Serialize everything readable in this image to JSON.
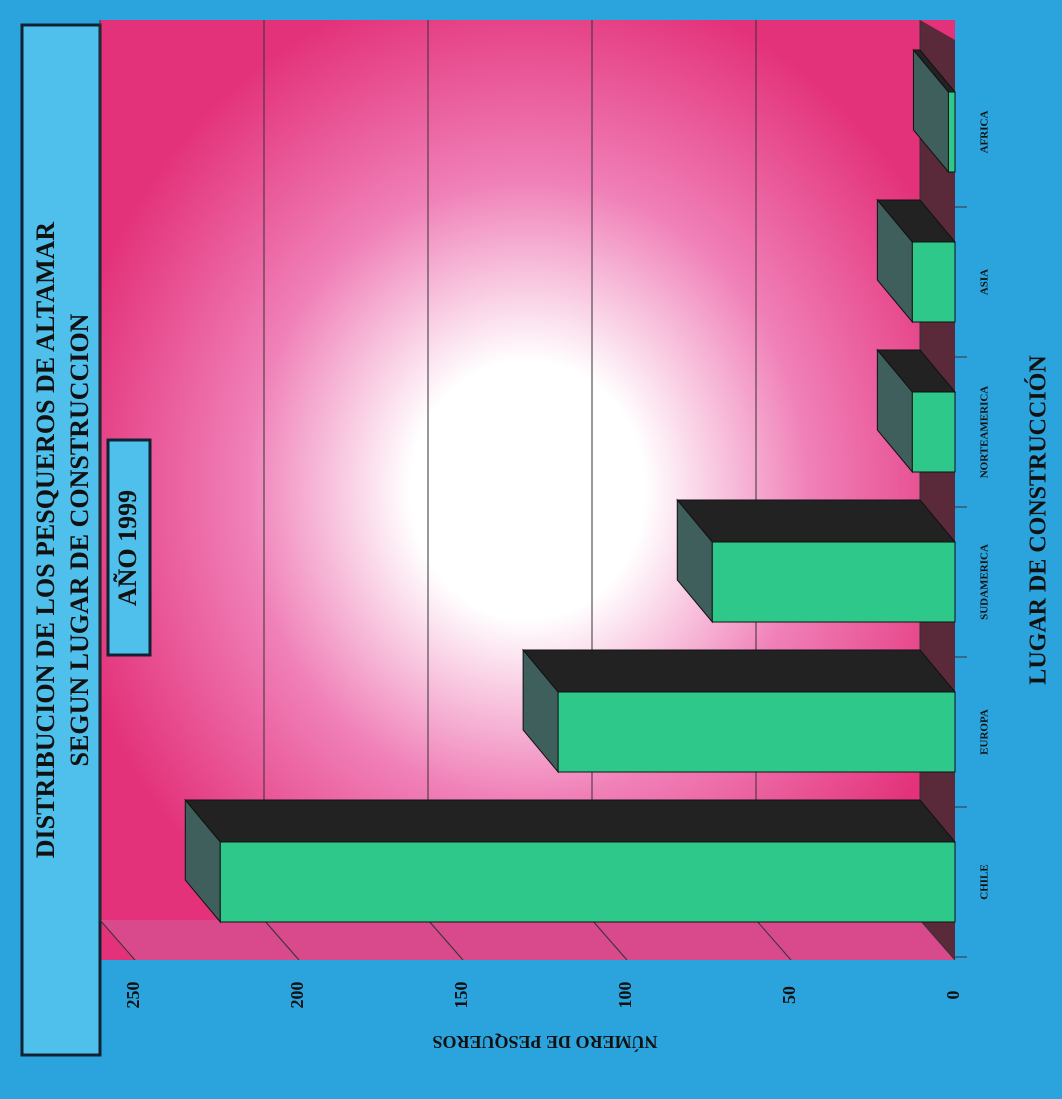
{
  "chart_data": {
    "type": "bar",
    "title": "DISTRIBUCION DE LOS PESQUEROS DE ALTAMAR",
    "subtitle": "SEGUN LUGAR DE CONSTRUCCION",
    "annotation": "AÑO 1999",
    "x_label": "LUGAR DE CONSTRUCCIÓN",
    "y_label": "NÚMERO DE PESQUEROS",
    "categories": [
      "CHILE",
      "EUROPA",
      "SUDAMERICA",
      "NORTEAMERICA",
      "ASIA",
      "AFRICA"
    ],
    "values": [
      224,
      121,
      74,
      13,
      13,
      2
    ],
    "color": "#2ec98a",
    "ylim": [
      0,
      250
    ],
    "yticks": [
      0,
      50,
      100,
      150,
      200,
      250
    ],
    "grid": true
  }
}
